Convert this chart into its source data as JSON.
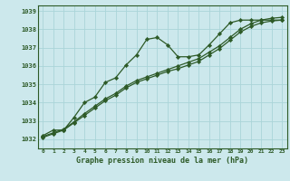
{
  "title": "Graphe pression niveau de la mer (hPa)",
  "background_color": "#cce8ec",
  "grid_color": "#aad4d8",
  "line_color": "#2d5a27",
  "marker_color": "#2d5a27",
  "xlim": [
    -0.5,
    23.5
  ],
  "ylim": [
    1031.5,
    1039.3
  ],
  "yticks": [
    1032,
    1033,
    1034,
    1035,
    1036,
    1037,
    1038,
    1039
  ],
  "xticks": [
    0,
    1,
    2,
    3,
    4,
    5,
    6,
    7,
    8,
    9,
    10,
    11,
    12,
    13,
    14,
    15,
    16,
    17,
    18,
    19,
    20,
    21,
    22,
    23
  ],
  "series": [
    {
      "x": [
        0,
        1,
        2,
        3,
        4,
        5,
        6,
        7,
        8,
        9,
        10,
        11,
        12,
        13,
        14,
        15,
        16,
        17,
        18,
        19,
        20,
        21,
        22,
        23
      ],
      "y": [
        1032.2,
        1032.5,
        1032.5,
        1033.2,
        1034.0,
        1034.3,
        1035.1,
        1035.35,
        1036.05,
        1036.6,
        1037.45,
        1037.55,
        1037.15,
        1036.5,
        1036.5,
        1036.6,
        1037.15,
        1037.75,
        1038.35,
        1038.5,
        1038.5,
        1038.5,
        1038.5,
        1038.5
      ],
      "marker": "D",
      "markersize": 2.2,
      "linewidth": 0.9,
      "linestyle": "-"
    },
    {
      "x": [
        0,
        1,
        2,
        3,
        4,
        5,
        6,
        7,
        8,
        9,
        10,
        11,
        12,
        13,
        14,
        15,
        16,
        17,
        18,
        19,
        20,
        21,
        22,
        23
      ],
      "y": [
        1032.1,
        1032.3,
        1032.5,
        1032.9,
        1033.3,
        1033.7,
        1034.1,
        1034.4,
        1034.8,
        1035.1,
        1035.3,
        1035.5,
        1035.7,
        1035.85,
        1036.05,
        1036.25,
        1036.6,
        1036.95,
        1037.4,
        1037.85,
        1038.15,
        1038.35,
        1038.45,
        1038.5
      ],
      "marker": "D",
      "markersize": 2.2,
      "linewidth": 0.9,
      "linestyle": "-"
    },
    {
      "x": [
        0,
        1,
        2,
        3,
        4,
        5,
        6,
        7,
        8,
        9,
        10,
        11,
        12,
        13,
        14,
        15,
        16,
        17,
        18,
        19,
        20,
        21,
        22,
        23
      ],
      "y": [
        1032.15,
        1032.35,
        1032.55,
        1032.95,
        1033.4,
        1033.8,
        1034.2,
        1034.5,
        1034.9,
        1035.2,
        1035.4,
        1035.6,
        1035.8,
        1036.0,
        1036.2,
        1036.4,
        1036.75,
        1037.1,
        1037.55,
        1038.0,
        1038.3,
        1038.5,
        1038.6,
        1038.65
      ],
      "marker": "D",
      "markersize": 2.2,
      "linewidth": 0.9,
      "linestyle": "-"
    }
  ]
}
